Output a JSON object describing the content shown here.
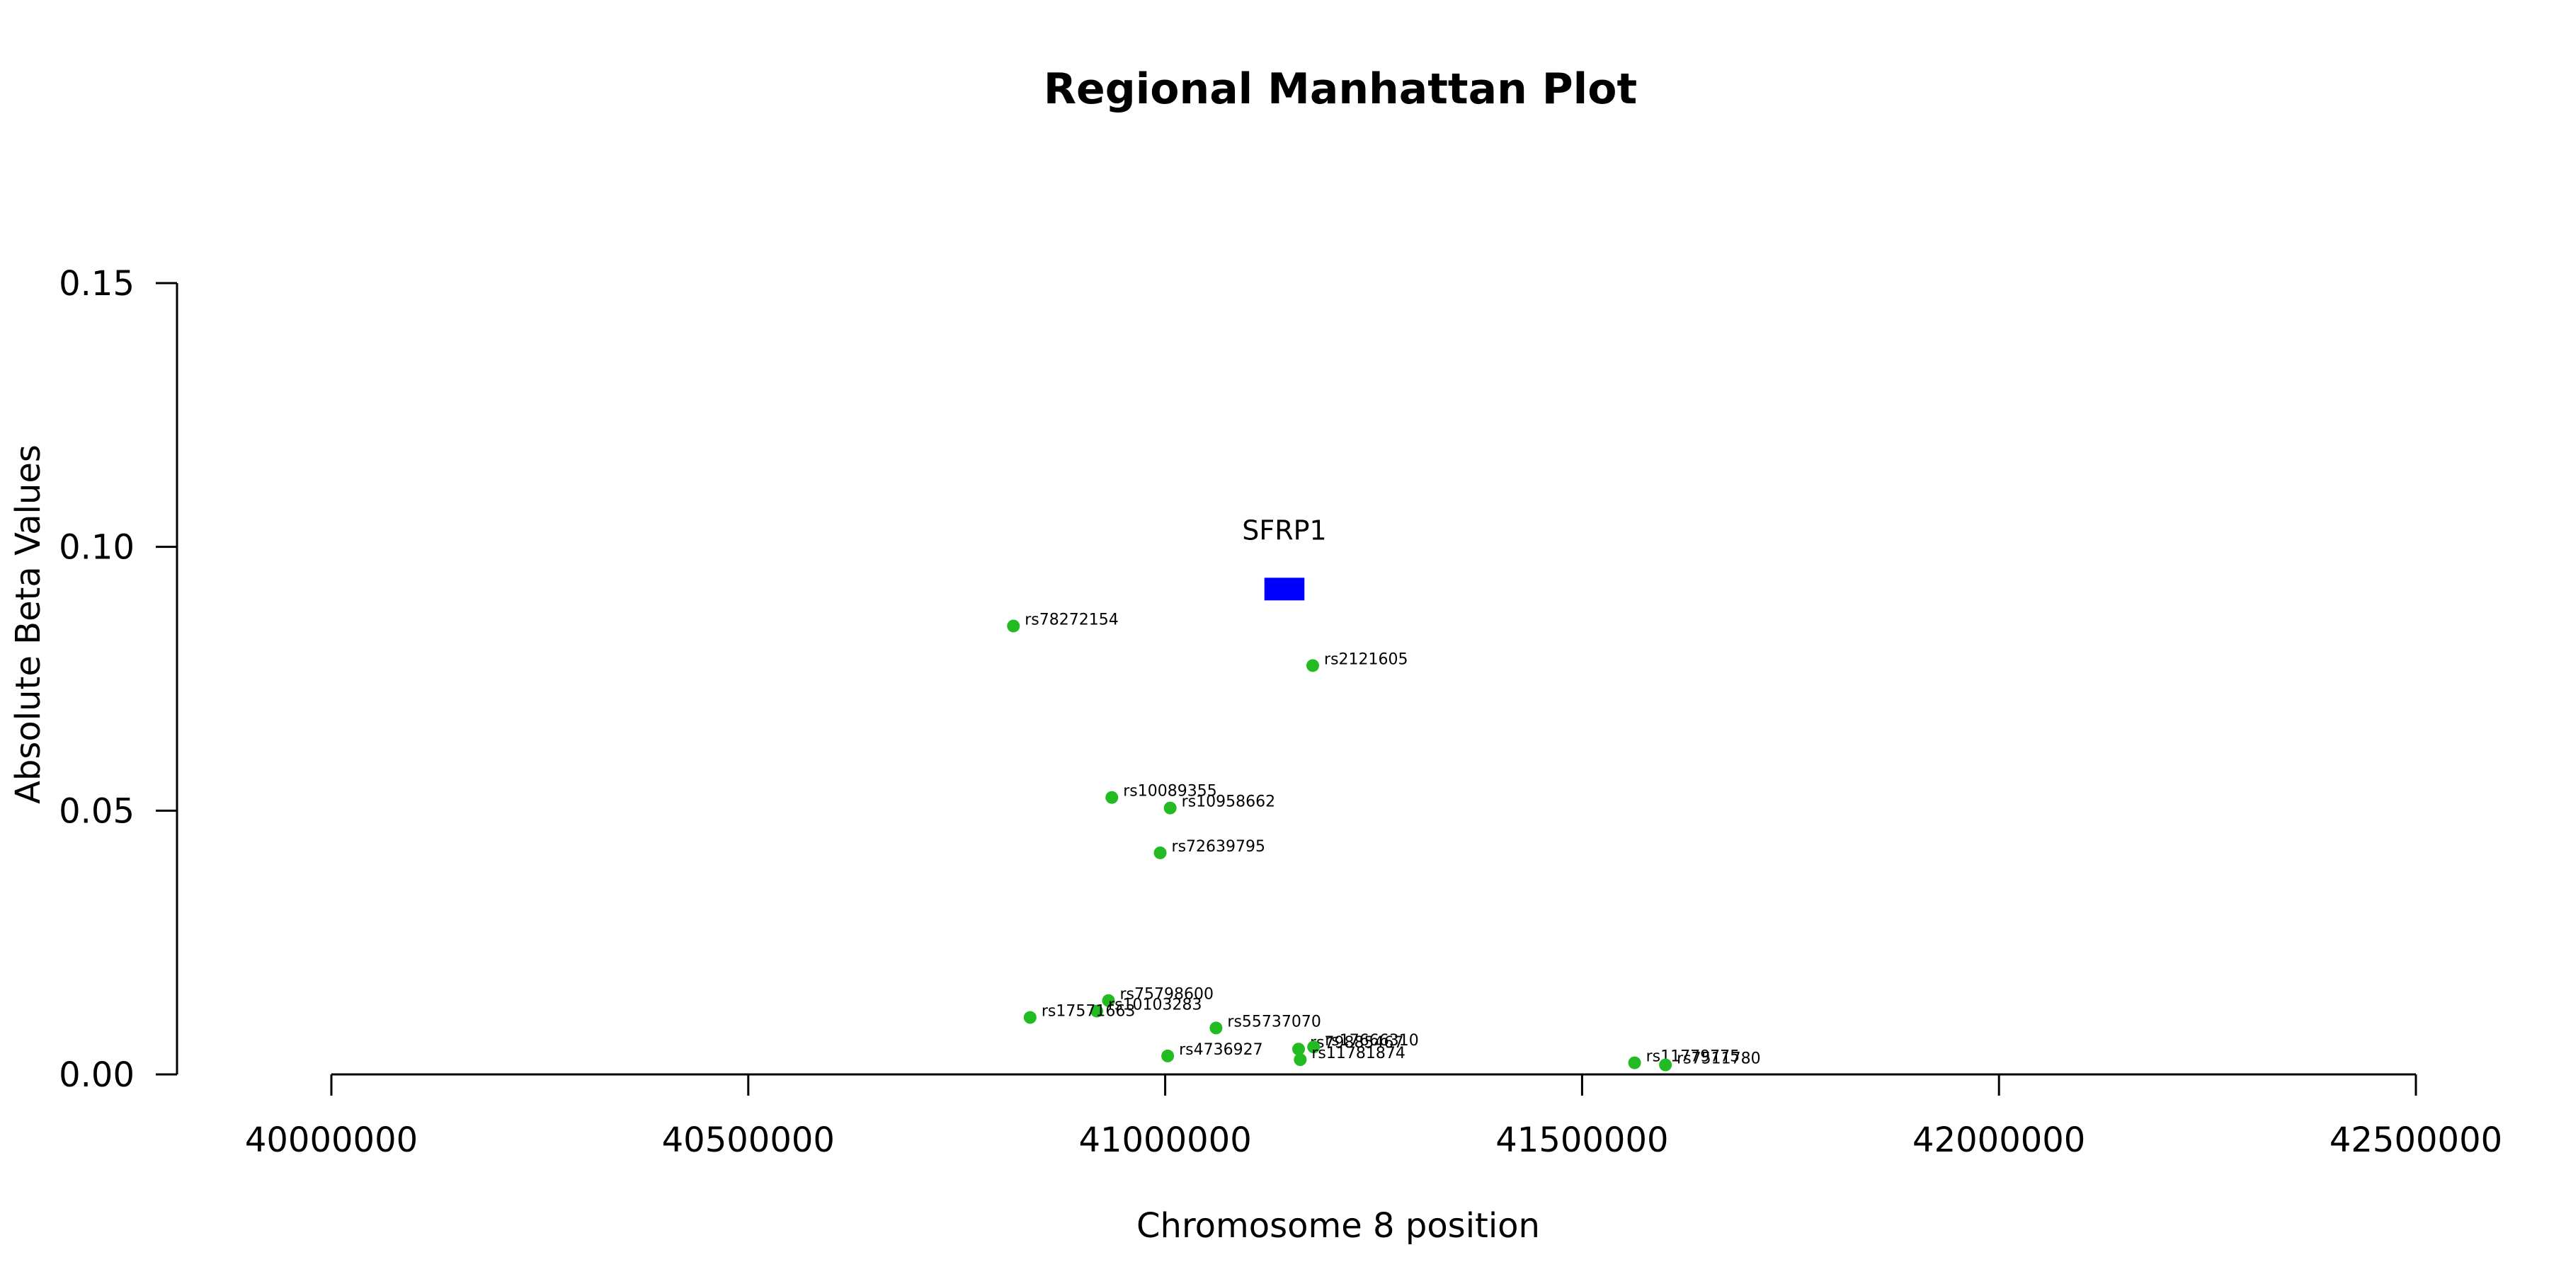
{
  "chart_data": {
    "type": "scatter",
    "title": "Regional Manhattan Plot",
    "xlabel": "Chromosome 8 position",
    "ylabel": "Absolute Beta Values",
    "xlim": [
      40000000,
      42500000
    ],
    "ylim": [
      0,
      0.15
    ],
    "x_ticks": [
      "40000000",
      "40500000",
      "41000000",
      "41500000",
      "42000000",
      "42500000"
    ],
    "y_ticks": [
      "0.00",
      "0.05",
      "0.10",
      "0.15"
    ],
    "grid": false,
    "point_color": "#22bb22",
    "gene_color": "#0000ff",
    "genes": [
      {
        "name": "SFRP1",
        "start": 41119000,
        "end": 41167000,
        "y": 0.092
      }
    ],
    "points": [
      {
        "label": "rs78272154",
        "x": 40818000,
        "y": 0.085
      },
      {
        "label": "rs2121605",
        "x": 41177000,
        "y": 0.0775
      },
      {
        "label": "rs10089355",
        "x": 40936000,
        "y": 0.0525
      },
      {
        "label": "rs10958662",
        "x": 41006000,
        "y": 0.0505
      },
      {
        "label": "rs72639795",
        "x": 40994000,
        "y": 0.042
      },
      {
        "label": "rs75798600",
        "x": 40932000,
        "y": 0.014
      },
      {
        "label": "rs10103283",
        "x": 40918000,
        "y": 0.012
      },
      {
        "label": "rs17571663",
        "x": 40838000,
        "y": 0.0108
      },
      {
        "label": "rs55737070",
        "x": 41061000,
        "y": 0.0088
      },
      {
        "label": "rs4736927",
        "x": 41003000,
        "y": 0.0035
      },
      {
        "label": "rs79885467",
        "x": 41160000,
        "y": 0.0048
      },
      {
        "label": "rs17666310",
        "x": 41178000,
        "y": 0.0052
      },
      {
        "label": "rs11781874",
        "x": 41162000,
        "y": 0.0028
      },
      {
        "label": "rs11779775",
        "x": 41563000,
        "y": 0.0022
      },
      {
        "label": "rs7511780",
        "x": 41600000,
        "y": 0.0018
      }
    ]
  }
}
